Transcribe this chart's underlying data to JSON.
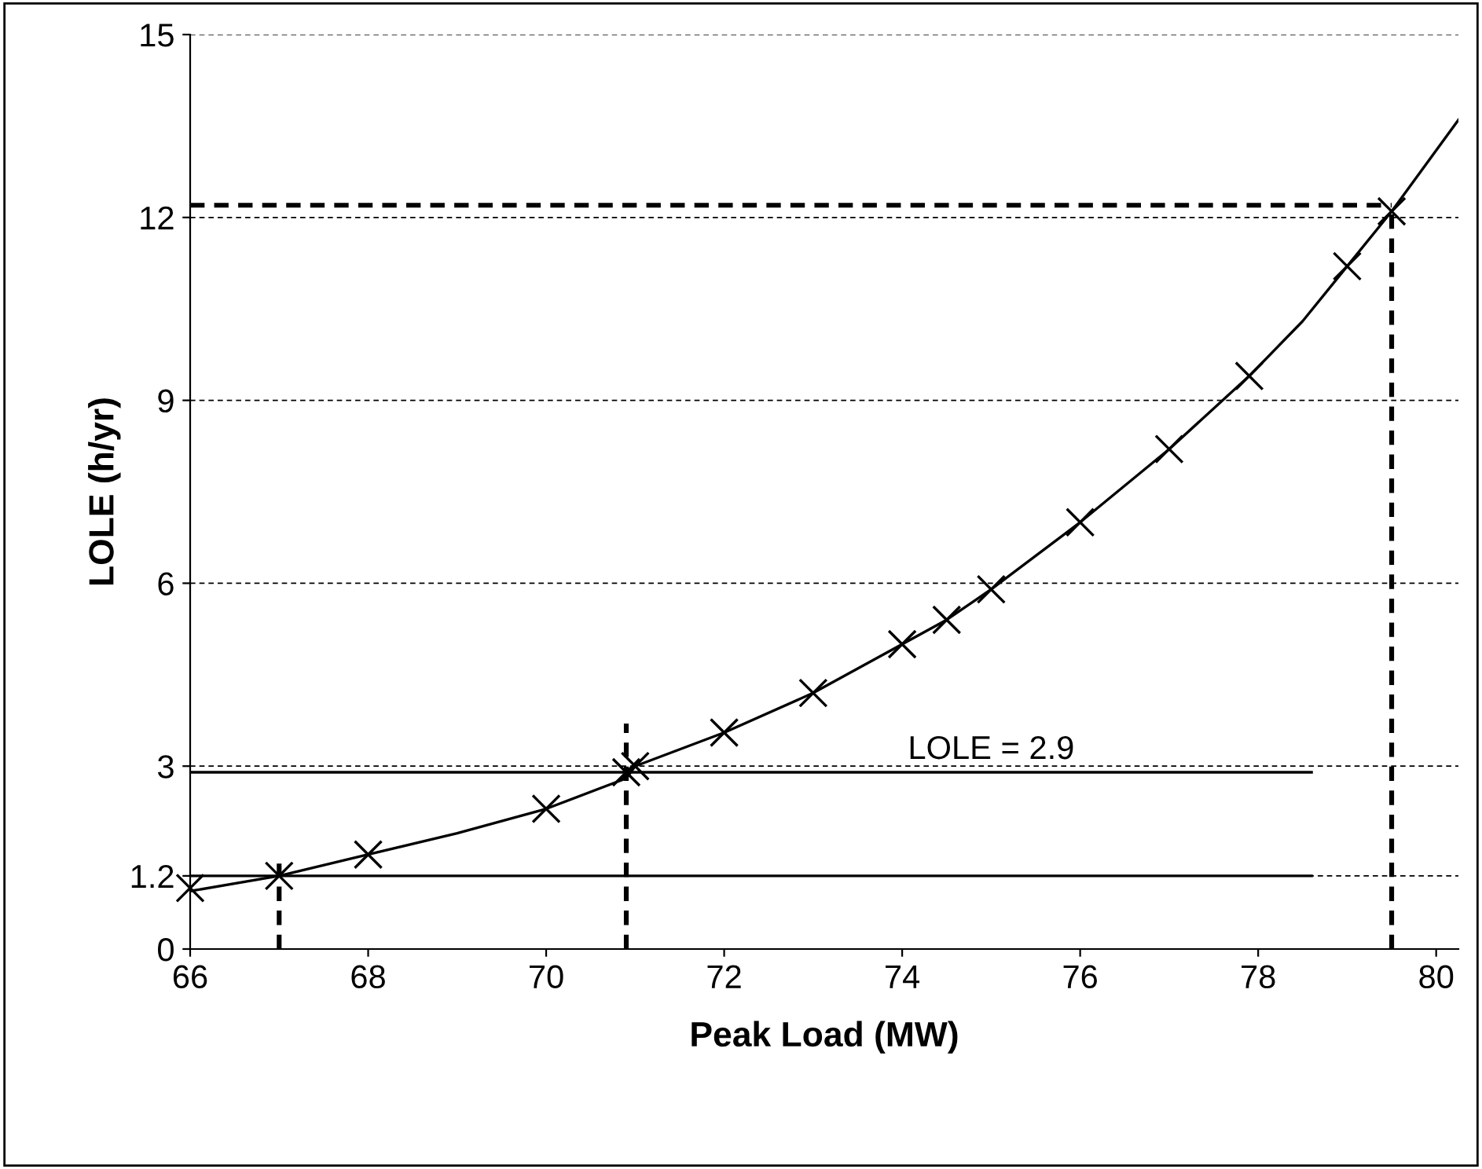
{
  "chart_data": {
    "type": "line",
    "xlabel": "Peak Load (MW)",
    "ylabel": "LOLE (h/yr)",
    "xlim": [
      66,
      80.25
    ],
    "xticks": [
      66,
      68,
      70,
      72,
      74,
      76,
      78,
      80
    ],
    "ylim": [
      0,
      15
    ],
    "yticks": [
      0,
      1.2,
      3,
      6,
      9,
      12,
      15
    ],
    "grid": "y",
    "legend": false,
    "series": [
      {
        "color": "#000000",
        "marker": "none",
        "line_style": "solid",
        "x": [
          66,
          67,
          68,
          69,
          70,
          70.9,
          71,
          72,
          73,
          74,
          74.5,
          75,
          76,
          77,
          77.9,
          78.5,
          79,
          79.5,
          80.25
        ],
        "values": [
          0.95,
          1.2,
          1.55,
          1.9,
          2.3,
          2.8,
          3.0,
          3.55,
          4.2,
          5.0,
          5.4,
          5.9,
          7.0,
          8.2,
          9.4,
          10.3,
          11.2,
          12.1,
          13.6
        ]
      },
      {
        "type": "scatter",
        "color": "#000000",
        "marker": "cross",
        "x": [
          66,
          67,
          68,
          70,
          70.9,
          71,
          72,
          73,
          74,
          74.5,
          75,
          76,
          77,
          77.9,
          79,
          79.5
        ],
        "values": [
          1.0,
          1.2,
          1.55,
          2.3,
          2.9,
          3.0,
          3.55,
          4.2,
          5.0,
          5.4,
          5.9,
          7.0,
          8.2,
          9.4,
          11.2,
          12.1
        ]
      },
      {
        "color": "#000000",
        "marker": "none",
        "line_style": "solid",
        "x": [
          66,
          78.6
        ],
        "values": [
          2.9,
          2.9
        ]
      },
      {
        "color": "#000000",
        "marker": "none",
        "line_style": "solid",
        "x": [
          66,
          78.6
        ],
        "values": [
          1.2,
          1.2
        ]
      },
      {
        "color": "#000000",
        "marker": "none",
        "line_style": "dashed",
        "x": [
          67,
          67
        ],
        "values": [
          0,
          1.4
        ]
      },
      {
        "color": "#000000",
        "marker": "none",
        "line_style": "dashed",
        "x": [
          70.9,
          70.9
        ],
        "values": [
          0,
          3.7
        ]
      },
      {
        "color": "#000000",
        "marker": "none",
        "line_style": "dashed",
        "x": [
          79.5,
          79.5
        ],
        "values": [
          0,
          12.2
        ]
      },
      {
        "color": "#000000",
        "marker": "none",
        "line_style": "dashed",
        "x": [
          66,
          79.5
        ],
        "values": [
          12.2,
          12.2
        ]
      }
    ],
    "annotations": [
      {
        "text": "LOLE = 2.9",
        "x": 75,
        "y": 2.9
      }
    ]
  }
}
